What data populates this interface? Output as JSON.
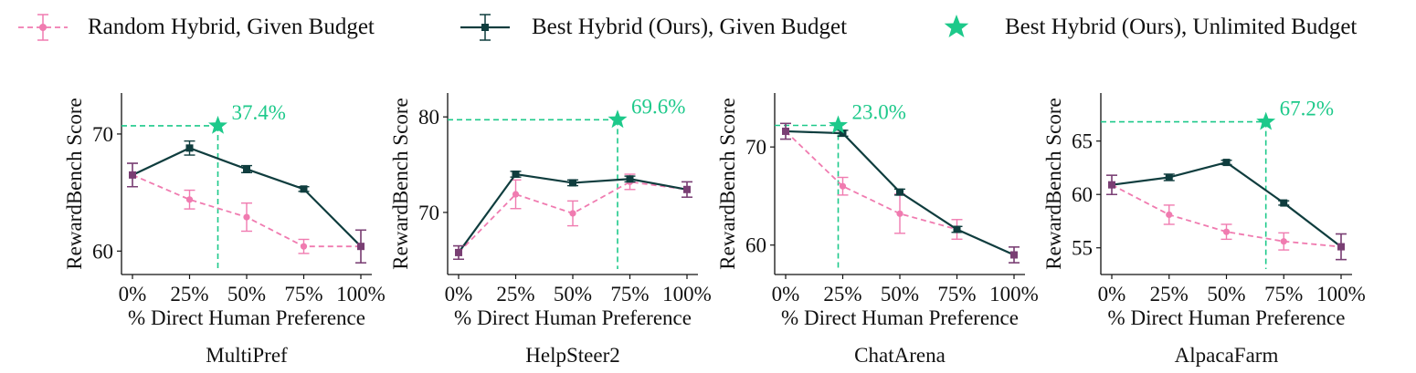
{
  "legend": {
    "random": "Random Hybrid, Given Budget",
    "best": "Best Hybrid (Ours), Given Budget",
    "unlimited": "Best Hybrid (Ours), Unlimited Budget"
  },
  "colors": {
    "random": "#f07bb0",
    "best": "#0f3d3e",
    "star": "#1dc98a",
    "endpoint": "#7a3f74"
  },
  "chart_data": [
    {
      "type": "line",
      "title": "MultiPref",
      "xlabel": "% Direct Human Preference",
      "ylabel": "RewardBench Score",
      "x": [
        0,
        25,
        50,
        75,
        100
      ],
      "xticks": [
        "0%",
        "25%",
        "50%",
        "75%",
        "100%"
      ],
      "yticks": [
        60,
        70
      ],
      "ylim": [
        58.0,
        73.5
      ],
      "series": [
        {
          "name": "Random Hybrid, Given Budget",
          "values": [
            66.5,
            64.4,
            62.9,
            60.4,
            60.4
          ],
          "errors": [
            1.0,
            0.8,
            1.2,
            0.6,
            1.4
          ]
        },
        {
          "name": "Best Hybrid (Ours), Given Budget",
          "values": [
            66.5,
            68.8,
            67.0,
            65.3,
            60.4
          ],
          "errors": [
            1.0,
            0.6,
            0.3,
            0.2,
            1.4
          ]
        }
      ],
      "star": {
        "x": 37.4,
        "y": 70.7,
        "label": "37.4%"
      }
    },
    {
      "type": "line",
      "title": "HelpSteer2",
      "xlabel": "% Direct Human Preference",
      "ylabel": "RewardBench Score",
      "x": [
        0,
        25,
        50,
        75,
        100
      ],
      "xticks": [
        "0%",
        "25%",
        "50%",
        "75%",
        "100%"
      ],
      "yticks": [
        70,
        80
      ],
      "ylim": [
        63.5,
        82.5
      ],
      "series": [
        {
          "name": "Random Hybrid, Given Budget",
          "values": [
            65.8,
            71.9,
            69.9,
            73.2,
            72.4
          ],
          "errors": [
            0.7,
            1.5,
            1.3,
            0.8,
            0.8
          ]
        },
        {
          "name": "Best Hybrid (Ours), Given Budget",
          "values": [
            65.8,
            74.0,
            73.1,
            73.5,
            72.4
          ],
          "errors": [
            0.7,
            0.3,
            0.3,
            0.3,
            0.8
          ]
        }
      ],
      "star": {
        "x": 69.6,
        "y": 79.7,
        "label": "69.6%"
      }
    },
    {
      "type": "line",
      "title": "ChatArena",
      "xlabel": "% Direct Human Preference",
      "ylabel": "RewardBench Score",
      "x": [
        0,
        25,
        50,
        75,
        100
      ],
      "xticks": [
        "0%",
        "25%",
        "50%",
        "75%",
        "100%"
      ],
      "yticks": [
        60,
        70
      ],
      "ylim": [
        57.0,
        75.5
      ],
      "series": [
        {
          "name": "Random Hybrid, Given Budget",
          "values": [
            71.6,
            66.0,
            63.2,
            61.6,
            59.0
          ],
          "errors": [
            0.8,
            0.9,
            2.0,
            1.0,
            0.8
          ]
        },
        {
          "name": "Best Hybrid (Ours), Given Budget",
          "values": [
            71.6,
            71.4,
            65.4,
            61.6,
            59.0
          ],
          "errors": [
            0.8,
            0.3,
            0.3,
            0.3,
            0.8
          ]
        }
      ],
      "star": {
        "x": 23.0,
        "y": 72.2,
        "label": "23.0%"
      }
    },
    {
      "type": "line",
      "title": "AlpacaFarm",
      "xlabel": "% Direct Human Preference",
      "ylabel": "RewardBench Score",
      "x": [
        0,
        25,
        50,
        75,
        100
      ],
      "xticks": [
        "0%",
        "25%",
        "50%",
        "75%",
        "100%"
      ],
      "yticks": [
        55,
        60,
        65
      ],
      "ylim": [
        52.5,
        69.5
      ],
      "series": [
        {
          "name": "Random Hybrid, Given Budget",
          "values": [
            60.9,
            58.1,
            56.5,
            55.6,
            55.1
          ],
          "errors": [
            0.9,
            0.9,
            0.7,
            0.8,
            1.2
          ]
        },
        {
          "name": "Best Hybrid (Ours), Given Budget",
          "values": [
            60.9,
            61.6,
            63.0,
            59.2,
            55.1
          ],
          "errors": [
            0.9,
            0.3,
            0.2,
            0.2,
            1.2
          ]
        }
      ],
      "star": {
        "x": 67.2,
        "y": 66.8,
        "label": "67.2%"
      }
    }
  ]
}
